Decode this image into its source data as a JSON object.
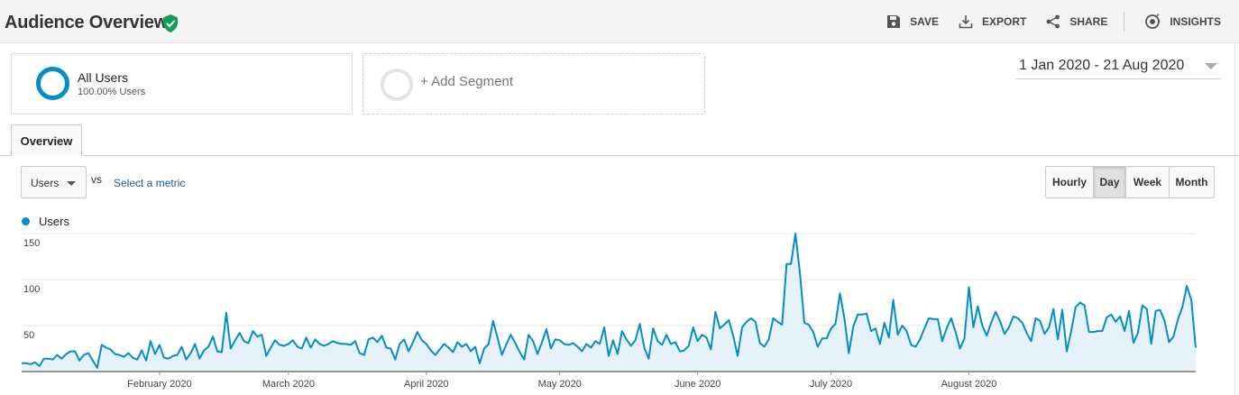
{
  "header": {
    "title": "Audience Overview",
    "actions": [
      {
        "label": "SAVE",
        "icon": "save-icon"
      },
      {
        "label": "EXPORT",
        "icon": "export-icon"
      },
      {
        "label": "SHARE",
        "icon": "share-icon"
      },
      {
        "label": "INSIGHTS",
        "icon": "insights-icon"
      }
    ]
  },
  "segments": {
    "primary": {
      "name": "All Users",
      "sub": "100.00% Users"
    },
    "add_label": "+ Add Segment"
  },
  "date_range": "1 Jan 2020 - 21 Aug 2020",
  "tabs": [
    {
      "label": "Overview"
    }
  ],
  "metric": {
    "selected": "Users",
    "vs": "vs",
    "select_label": "Select a metric"
  },
  "granularity": {
    "options": [
      "Hourly",
      "Day",
      "Week",
      "Month"
    ],
    "active": "Day"
  },
  "legend": {
    "series": "Users",
    "color": "#058dc7"
  },
  "chart_data": {
    "type": "area",
    "start_date": "2020-01-01",
    "ylim": [
      0,
      160
    ],
    "yticks": [
      50,
      100,
      150
    ],
    "xtick_labels": [
      "February 2020",
      "March 2020",
      "April 2020",
      "May 2020",
      "June 2020",
      "July 2020",
      "August 2020"
    ],
    "xtick_dates": [
      "2020-02-01",
      "2020-03-01",
      "2020-04-01",
      "2020-05-01",
      "2020-06-01",
      "2020-07-01",
      "2020-08-01"
    ],
    "series": [
      {
        "name": "Users",
        "values": [
          9,
          9,
          8,
          10,
          6,
          14,
          14,
          13,
          18,
          14,
          19,
          22,
          22,
          12,
          18,
          20,
          12,
          4,
          29,
          26,
          24,
          19,
          18,
          16,
          20,
          15,
          13,
          23,
          12,
          33,
          19,
          29,
          15,
          14,
          17,
          18,
          27,
          13,
          20,
          30,
          14,
          23,
          27,
          38,
          22,
          21,
          64,
          25,
          34,
          42,
          33,
          31,
          44,
          38,
          40,
          17,
          26,
          34,
          29,
          28,
          30,
          34,
          27,
          25,
          37,
          26,
          35,
          30,
          28,
          30,
          33,
          31,
          30,
          30,
          29,
          33,
          20,
          18,
          35,
          37,
          32,
          39,
          26,
          25,
          13,
          30,
          35,
          22,
          32,
          43,
          34,
          30,
          23,
          18,
          24,
          30,
          26,
          21,
          32,
          27,
          30,
          22,
          27,
          9,
          25,
          30,
          55,
          37,
          18,
          30,
          40,
          31,
          21,
          13,
          40,
          33,
          19,
          32,
          46,
          25,
          35,
          34,
          30,
          29,
          31,
          27,
          22,
          30,
          26,
          33,
          30,
          48,
          17,
          34,
          19,
          44,
          35,
          28,
          34,
          52,
          26,
          14,
          47,
          33,
          29,
          40,
          30,
          32,
          22,
          23,
          28,
          48,
          33,
          40,
          37,
          24,
          65,
          47,
          51,
          56,
          39,
          17,
          48,
          54,
          58,
          54,
          31,
          27,
          35,
          58,
          54,
          51,
          117,
          117,
          150,
          107,
          53,
          51,
          43,
          27,
          36,
          36,
          47,
          52,
          85,
          58,
          20,
          49,
          62,
          62,
          63,
          44,
          47,
          30,
          53,
          37,
          78,
          40,
          50,
          44,
          29,
          27,
          35,
          47,
          58,
          57,
          57,
          33,
          47,
          58,
          43,
          25,
          36,
          92,
          48,
          71,
          50,
          39,
          53,
          65,
          55,
          41,
          48,
          60,
          58,
          53,
          42,
          33,
          58,
          55,
          41,
          48,
          68,
          35,
          67,
          22,
          44,
          70,
          75,
          72,
          43,
          43,
          44,
          44,
          59,
          62,
          54,
          60,
          44,
          66,
          31,
          42,
          72,
          68,
          30,
          66,
          67,
          55,
          32,
          38,
          57,
          70,
          93,
          78,
          26
        ]
      }
    ]
  }
}
